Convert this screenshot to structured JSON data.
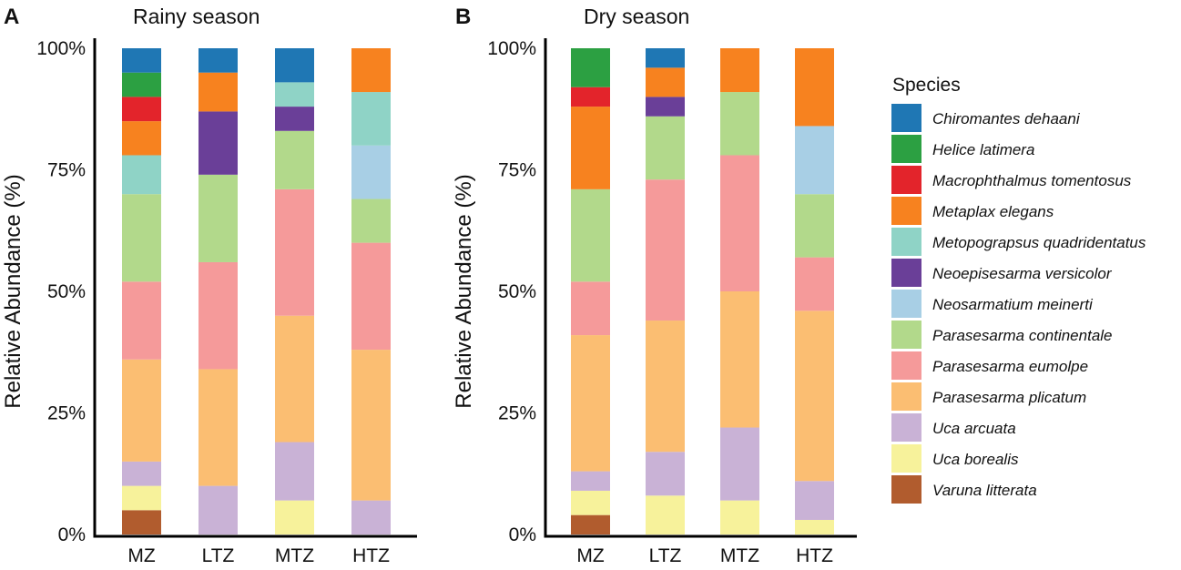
{
  "chart_data": [
    {
      "type": "bar",
      "stacked": true,
      "panel": "A",
      "title": "Rainy season",
      "ylabel": "Relative Abundance (%)",
      "xlabel": "",
      "ylim": [
        0,
        100
      ],
      "yticks": [
        "0%",
        "25%",
        "50%",
        "75%",
        "100%"
      ],
      "categories": [
        "MZ",
        "LTZ",
        "MTZ",
        "HTZ"
      ],
      "series": [
        {
          "name": "Varuna litterata",
          "values": [
            5,
            0,
            0,
            0
          ]
        },
        {
          "name": "Uca borealis",
          "values": [
            5,
            0,
            7,
            0
          ]
        },
        {
          "name": "Uca arcuata",
          "values": [
            5,
            10,
            12,
            7
          ]
        },
        {
          "name": "Parasesarma plicatum",
          "values": [
            21,
            24,
            26,
            31
          ]
        },
        {
          "name": "Parasesarma eumolpe",
          "values": [
            16,
            22,
            26,
            22
          ]
        },
        {
          "name": "Parasesarma continentale",
          "values": [
            18,
            18,
            12,
            9
          ]
        },
        {
          "name": "Neosarmatium meinerti",
          "values": [
            0,
            0,
            0,
            11
          ]
        },
        {
          "name": "Neoepisesarma versicolor",
          "values": [
            0,
            13,
            5,
            0
          ]
        },
        {
          "name": "Metopograpsus quadridentatus",
          "values": [
            8,
            0,
            5,
            11
          ]
        },
        {
          "name": "Metaplax elegans",
          "values": [
            7,
            8,
            0,
            9
          ]
        },
        {
          "name": "Macrophthalmus tomentosus",
          "values": [
            5,
            0,
            0,
            0
          ]
        },
        {
          "name": "Helice latimera",
          "values": [
            5,
            0,
            0,
            0
          ]
        },
        {
          "name": "Chiromantes dehaani",
          "values": [
            5,
            5,
            7,
            0
          ]
        }
      ]
    },
    {
      "type": "bar",
      "stacked": true,
      "panel": "B",
      "title": "Dry season",
      "ylabel": "Relative Abundance (%)",
      "xlabel": "",
      "ylim": [
        0,
        100
      ],
      "yticks": [
        "0%",
        "25%",
        "50%",
        "75%",
        "100%"
      ],
      "categories": [
        "MZ",
        "LTZ",
        "MTZ",
        "HTZ"
      ],
      "series": [
        {
          "name": "Varuna litterata",
          "values": [
            4,
            0,
            0,
            0
          ]
        },
        {
          "name": "Uca borealis",
          "values": [
            5,
            8,
            7,
            3
          ]
        },
        {
          "name": "Uca arcuata",
          "values": [
            4,
            9,
            15,
            8
          ]
        },
        {
          "name": "Parasesarma plicatum",
          "values": [
            28,
            27,
            28,
            35
          ]
        },
        {
          "name": "Parasesarma eumolpe",
          "values": [
            11,
            29,
            28,
            11
          ]
        },
        {
          "name": "Parasesarma continentale",
          "values": [
            19,
            13,
            13,
            13
          ]
        },
        {
          "name": "Neosarmatium meinerti",
          "values": [
            0,
            0,
            0,
            14
          ]
        },
        {
          "name": "Neoepisesarma versicolor",
          "values": [
            0,
            4,
            0,
            0
          ]
        },
        {
          "name": "Metopograpsus quadridentatus",
          "values": [
            0,
            0,
            0,
            0
          ]
        },
        {
          "name": "Metaplax elegans",
          "values": [
            17,
            6,
            9,
            16
          ]
        },
        {
          "name": "Macrophthalmus tomentosus",
          "values": [
            4,
            0,
            0,
            0
          ]
        },
        {
          "name": "Helice latimera",
          "values": [
            8,
            0,
            0,
            0
          ]
        },
        {
          "name": "Chiromantes dehaani",
          "values": [
            0,
            4,
            0,
            0
          ]
        }
      ]
    }
  ],
  "legend": {
    "title": "Species",
    "items": [
      {
        "name": "Chiromantes dehaani",
        "color": "#1f77b4"
      },
      {
        "name": "Helice latimera",
        "color": "#2ca042"
      },
      {
        "name": "Macrophthalmus tomentosus",
        "color": "#e3242b"
      },
      {
        "name": "Metaplax elegans",
        "color": "#f7821f"
      },
      {
        "name": "Metopograpsus quadridentatus",
        "color": "#8fd3c6"
      },
      {
        "name": "Neoepisesarma versicolor",
        "color": "#6a3f98"
      },
      {
        "name": "Neosarmatium meinerti",
        "color": "#a8cfe5"
      },
      {
        "name": "Parasesarma continentale",
        "color": "#b2d98b"
      },
      {
        "name": "Parasesarma eumolpe",
        "color": "#f59a9a"
      },
      {
        "name": "Parasesarma plicatum",
        "color": "#fbbe72"
      },
      {
        "name": "Uca arcuata",
        "color": "#c9b2d6"
      },
      {
        "name": "Uca borealis",
        "color": "#f7f29b"
      },
      {
        "name": "Varuna litterata",
        "color": "#b15c2e"
      }
    ]
  }
}
